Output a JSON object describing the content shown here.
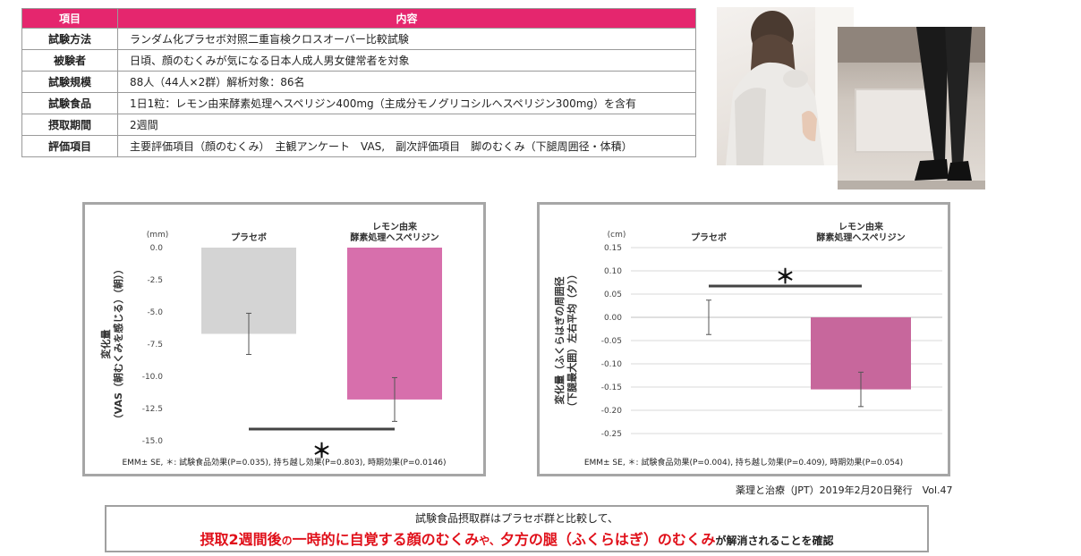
{
  "table": {
    "headers": [
      "項目",
      "内容"
    ],
    "rows": [
      {
        "key": "試験方法",
        "value": "ランダム化プラセボ対照二重盲検クロスオーバー比較試験"
      },
      {
        "key": "被験者",
        "value": "日頃、顔のむくみが気になる日本人成人男女健常者を対象"
      },
      {
        "key": "試験規模",
        "value": "88人（44人×2群）解析対象：86名"
      },
      {
        "key": "試験食品",
        "value": "1日1粒：レモン由来酵素処理ヘスペリジン400mg（主成分モノグリコシルヘスペリジン300mg）を含有"
      },
      {
        "key": "摂取期間",
        "value": "2週間"
      },
      {
        "key": "評価項目",
        "value": "主要評価項目（顔のむくみ）　主観アンケート　VAS,　副次評価項目　脚のむくみ（下腿周囲径・体積）"
      }
    ]
  },
  "chart_data": [
    {
      "type": "bar",
      "categories": [
        "プラセボ",
        "レモン由来\n酵素処理ヘスペリジン"
      ],
      "values": [
        -6.7,
        -11.8
      ],
      "error": [
        1.6,
        1.7
      ],
      "colors": [
        "#d4d4d4",
        "#d76fac"
      ],
      "unit": "(mm)",
      "ylabel": "変化量\n（VAS（朝むくみを感じる）（朝））",
      "ylim": [
        -15.0,
        0.0
      ],
      "yticks": [
        "0.0",
        "-2.5",
        "-5.0",
        "-7.5",
        "-10.0",
        "-12.5",
        "-15.0"
      ],
      "significance": "＊",
      "footnote": "EMM± SE, ＊: 試験食品効果(P=0.035), 持ち越し効果(P=0.803), 時期効果(P=0.0146)"
    },
    {
      "type": "bar",
      "categories": [
        "プラセボ",
        "レモン由来\n酵素処理ヘスペリジン"
      ],
      "values": [
        0.0,
        -0.155
      ],
      "error": [
        0.037,
        0.037
      ],
      "colors": [
        "#d4d4d4",
        "#c7679c"
      ],
      "unit": "(cm)",
      "ylabel": "変化量（ふくらはぎの周囲径\n（下腿最大囲）左右平均（夕））",
      "ylim": [
        -0.25,
        0.15
      ],
      "yticks": [
        "0.15",
        "0.10",
        "0.05",
        "0.00",
        "-0.05",
        "-0.10",
        "-0.15",
        "-0.20",
        "-0.25"
      ],
      "significance": "＊",
      "footnote": "EMM± SE, ＊: 試験食品効果(P=0.004), 持ち越し効果(P=0.409), 時期効果(P=0.054)"
    }
  ],
  "source": "薬理と治療（JPT）2019年2月20日発行　Vol.47",
  "summary": {
    "line1": "試験食品摂取群はプラセボ群と比較して、",
    "part1": "摂取2週間後",
    "part2": "の",
    "part3": "一時的に自覚する顔のむくみ",
    "part4": "や、",
    "part5": "夕方の腿（ふくらはぎ）のむくみ",
    "part6": "が解消されることを確認"
  }
}
